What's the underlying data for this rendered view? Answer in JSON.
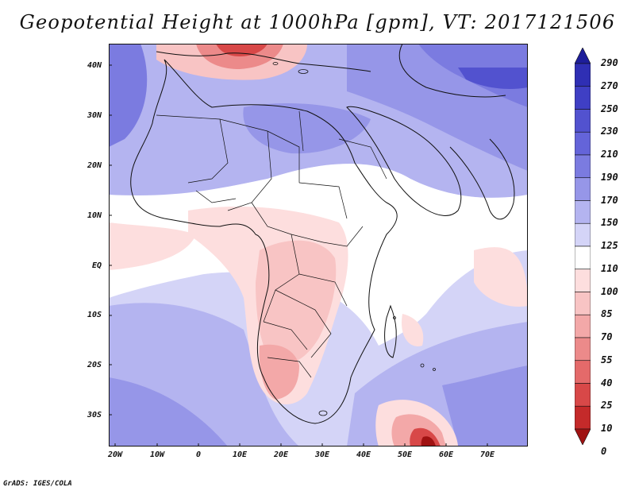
{
  "title": "Geopotential Height at 1000hPa [gpm], VT: 2017121506",
  "credit": "GrADS: IGES/COLA",
  "lat_labels": [
    "40N",
    "30N",
    "20N",
    "10N",
    "EQ",
    "10S",
    "20S",
    "30S"
  ],
  "lon_labels": [
    "20W",
    "10W",
    "0",
    "10E",
    "20E",
    "30E",
    "40E",
    "50E",
    "60E",
    "70E"
  ],
  "colorbar": {
    "levels": [
      "290",
      "270",
      "250",
      "230",
      "210",
      "190",
      "170",
      "150",
      "125",
      "110",
      "100",
      "85",
      "70",
      "55",
      "40",
      "25",
      "10",
      "0"
    ],
    "colors": [
      "#1e1e9a",
      "#2f2fb4",
      "#3f3fc4",
      "#5252cf",
      "#6464d9",
      "#7b7be0",
      "#9696e8",
      "#b4b4f0",
      "#d4d4f7",
      "#ffffff",
      "#fddede",
      "#f8c4c4",
      "#f3a8a8",
      "#ec8a8a",
      "#e46a6a",
      "#d84848",
      "#c42a2a",
      "#a01212"
    ]
  }
}
